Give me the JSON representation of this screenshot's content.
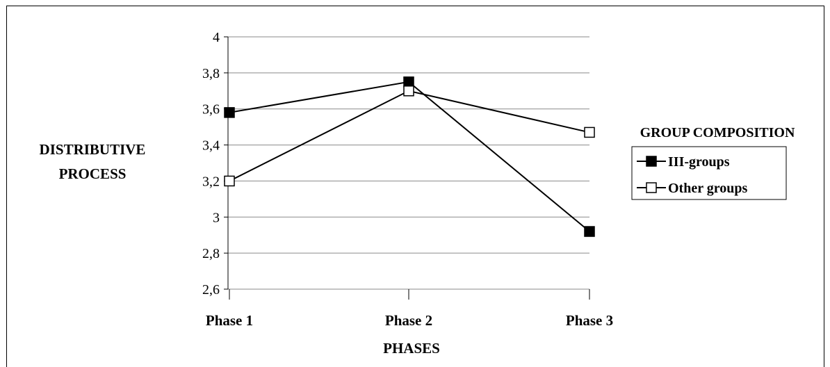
{
  "chart_data": {
    "type": "line",
    "title": "",
    "xlabel": "PHASES",
    "ylabel_lines": [
      "DISTRIBUTIVE",
      "PROCESS"
    ],
    "categories": [
      "Phase 1",
      "Phase 2",
      "Phase 3"
    ],
    "ylim": [
      2.6,
      4
    ],
    "yticks": [
      "2,6",
      "2,8",
      "3",
      "3,2",
      "3,4",
      "3,6",
      "3,8",
      "4"
    ],
    "ytick_values": [
      2.6,
      2.8,
      3.0,
      3.2,
      3.4,
      3.6,
      3.8,
      4.0
    ],
    "grid": true,
    "legend_title": "GROUP COMPOSITION",
    "legend_position": "right",
    "series": [
      {
        "name": "III-groups",
        "values": [
          3.58,
          3.75,
          2.92
        ],
        "marker": "filled-square",
        "color": "#000000"
      },
      {
        "name": "Other groups",
        "values": [
          3.2,
          3.7,
          3.47
        ],
        "marker": "open-square",
        "color": "#000000"
      }
    ]
  }
}
